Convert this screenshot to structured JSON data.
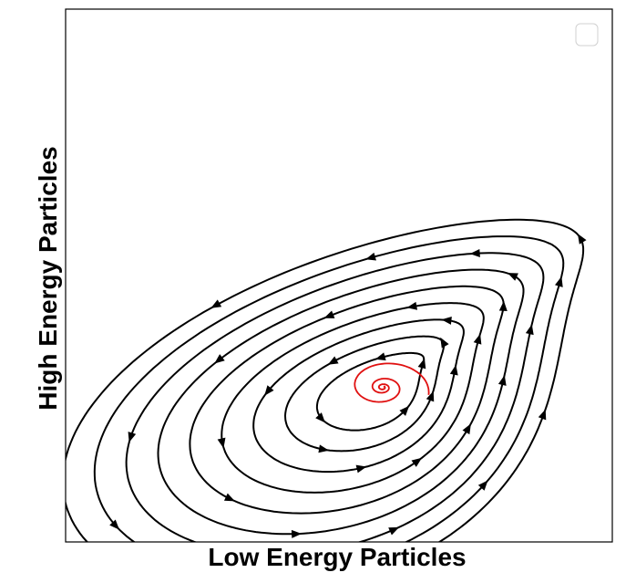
{
  "chart_data": {
    "type": "streamplot",
    "title": "",
    "xlabel": "Low Energy Particles",
    "ylabel": "High Energy Particles",
    "xlim": [
      0,
      1
    ],
    "ylim": [
      0,
      1
    ],
    "axis_ticks_visible": false,
    "grid": false,
    "legend": "top-right (empty)",
    "flow_direction": "counter-clockwise",
    "fixed_point": {
      "x": 0.58,
      "y": 0.29
    },
    "streamline_color": "#000000",
    "trajectory": {
      "color": "#e01010",
      "start": {
        "x": 0.66,
        "y": 0.27
      },
      "end": {
        "x": 0.58,
        "y": 0.29
      },
      "shape": "inward spiral"
    },
    "orbit_scales": [
      0.62,
      0.92,
      1.22,
      1.52,
      1.82,
      2.12,
      2.42,
      2.72,
      3.02
    ]
  }
}
